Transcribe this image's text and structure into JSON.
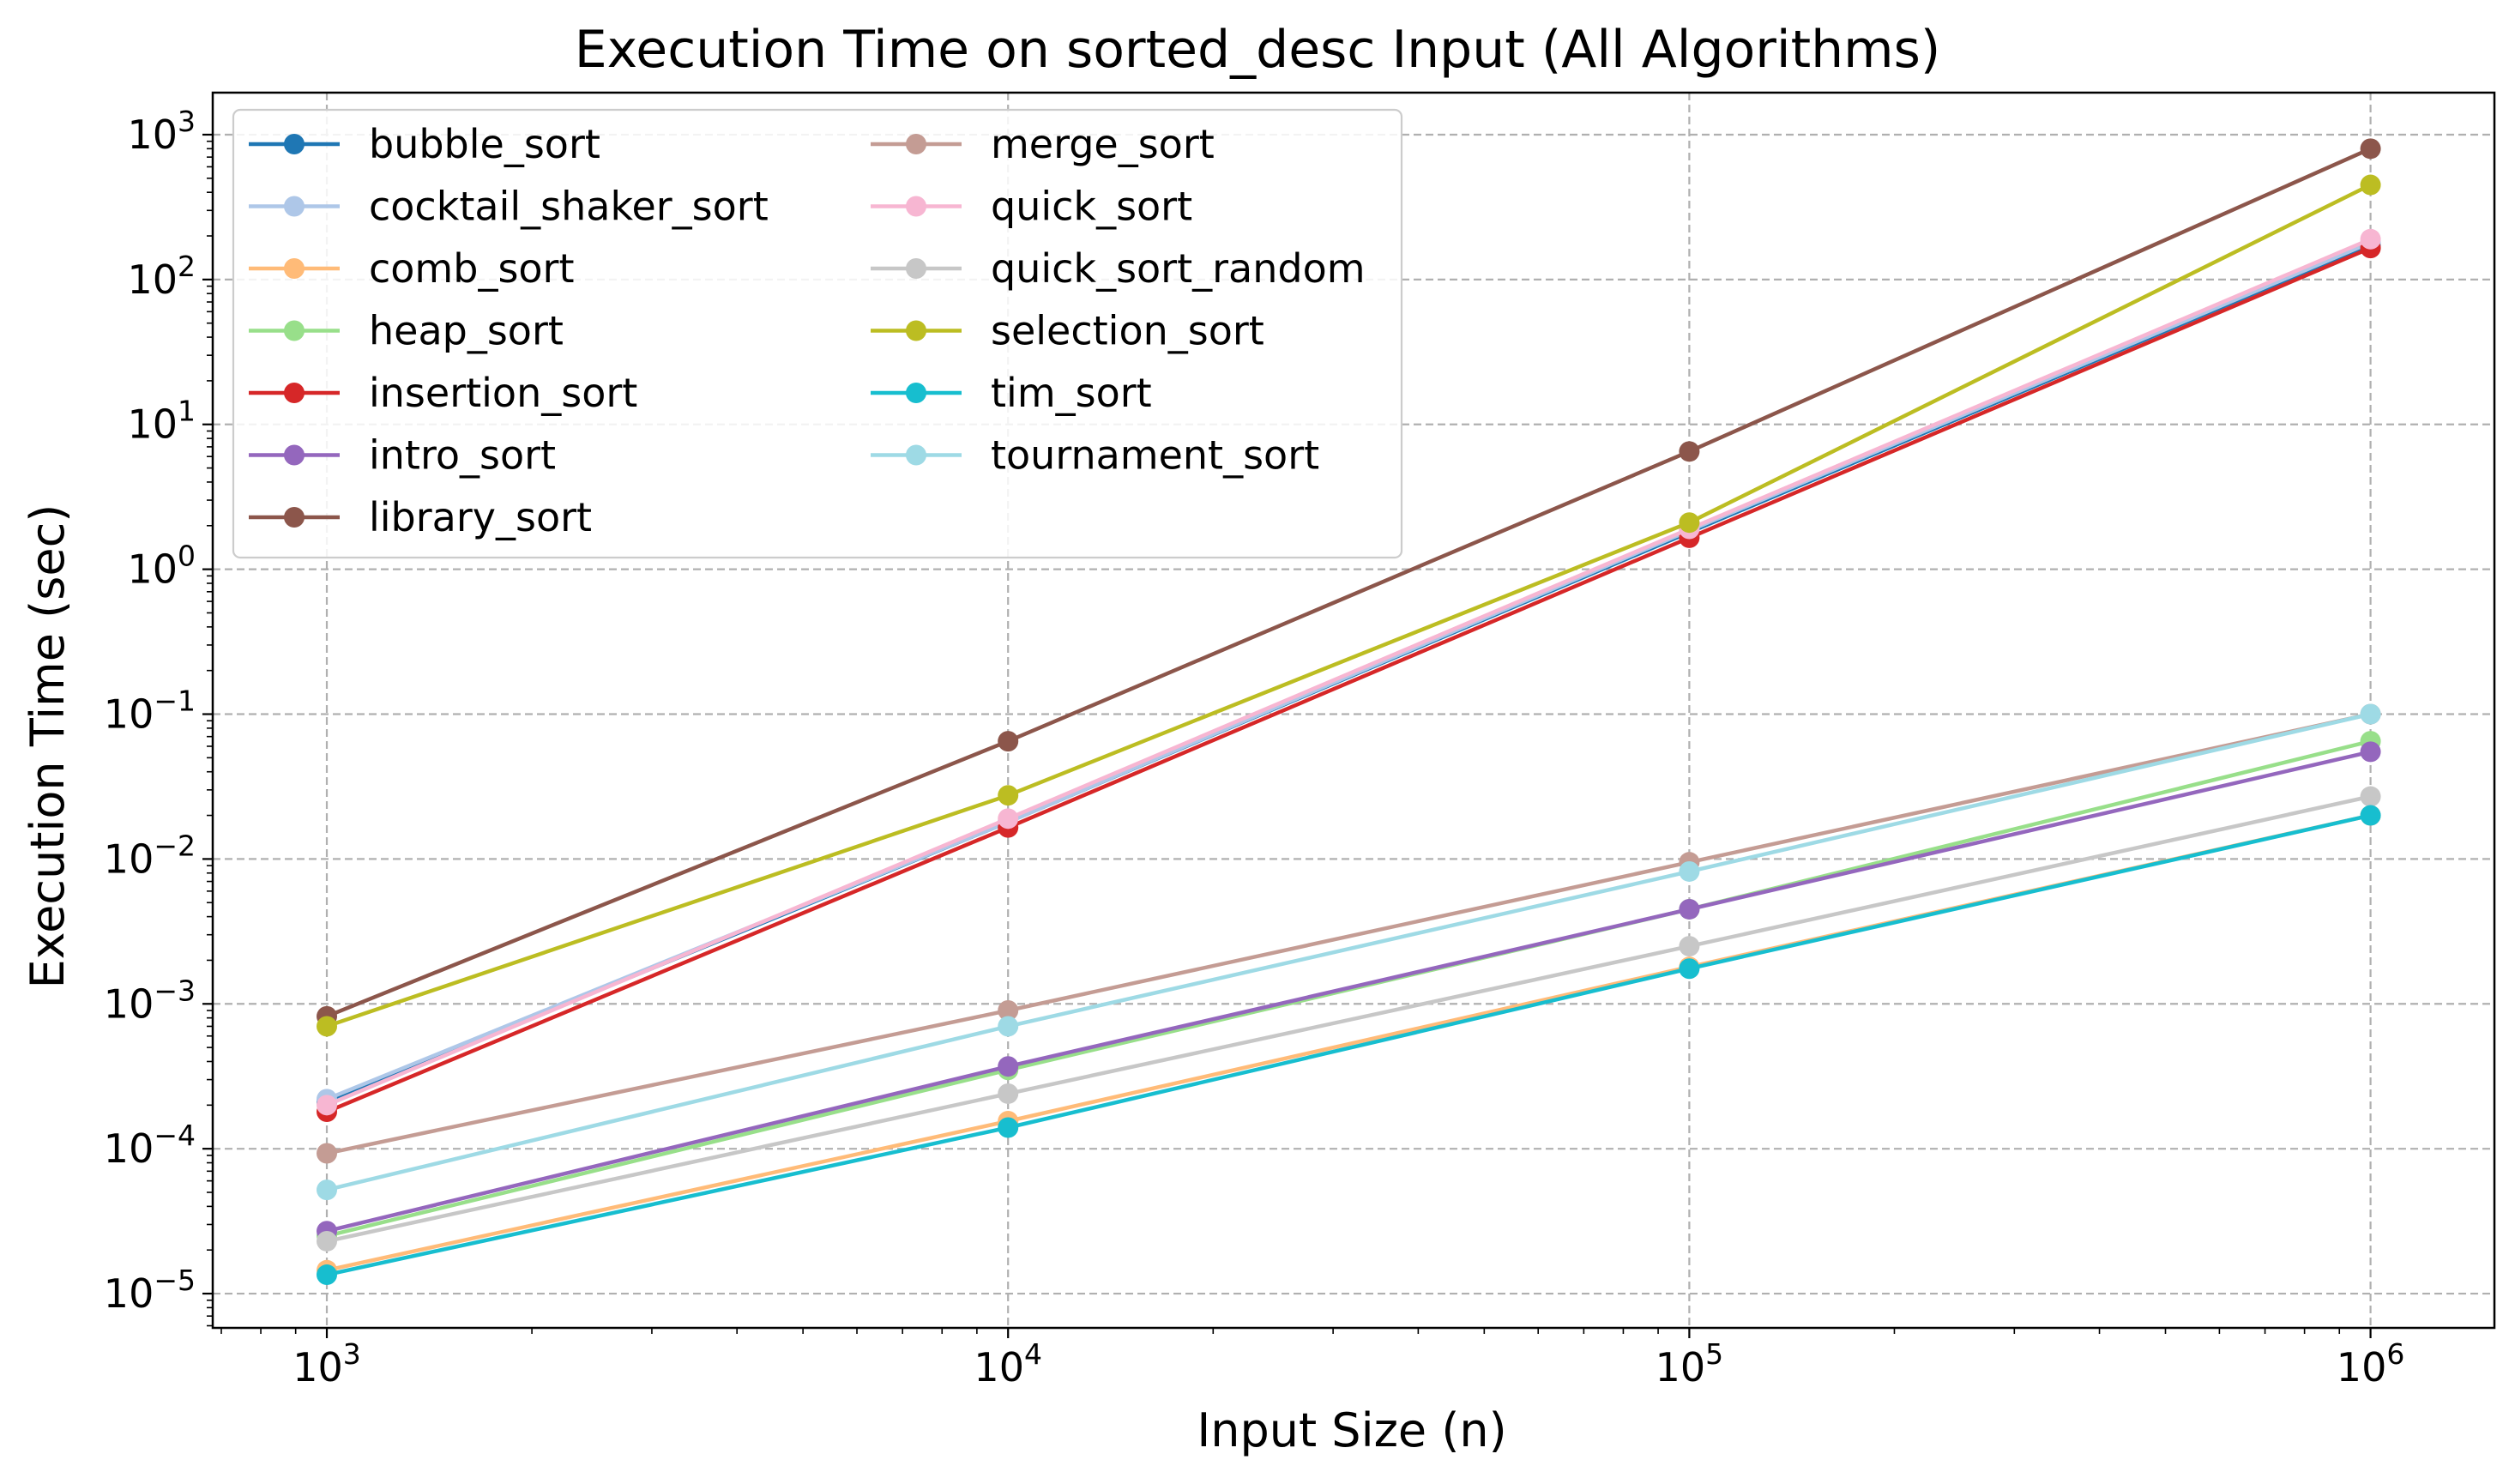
{
  "chart_data": {
    "type": "line",
    "title": "Execution Time on sorted_desc Input (All Algorithms)",
    "xlabel": "Input Size (n)",
    "ylabel": "Execution Time (sec)",
    "x_scale": "log",
    "y_scale": "log",
    "xlim": [
      680,
      1520000
    ],
    "ylim": [
      5.8e-06,
      1950
    ],
    "x_ticks": [
      {
        "value": 1000,
        "base": "10",
        "exp": "3"
      },
      {
        "value": 10000,
        "base": "10",
        "exp": "4"
      },
      {
        "value": 100000,
        "base": "10",
        "exp": "5"
      },
      {
        "value": 1000000,
        "base": "10",
        "exp": "6"
      }
    ],
    "y_ticks": [
      {
        "value": 1e-05,
        "base": "10",
        "exp": "−5"
      },
      {
        "value": 0.0001,
        "base": "10",
        "exp": "−4"
      },
      {
        "value": 0.001,
        "base": "10",
        "exp": "−3"
      },
      {
        "value": 0.01,
        "base": "10",
        "exp": "−2"
      },
      {
        "value": 0.1,
        "base": "10",
        "exp": "−1"
      },
      {
        "value": 1,
        "base": "10",
        "exp": "0"
      },
      {
        "value": 10,
        "base": "10",
        "exp": "1"
      },
      {
        "value": 100,
        "base": "10",
        "exp": "2"
      },
      {
        "value": 1000,
        "base": "10",
        "exp": "3"
      }
    ],
    "grid": true,
    "legend_position": "top-left",
    "x": [
      1000,
      10000,
      100000,
      1000000
    ],
    "series": [
      {
        "name": "bubble_sort",
        "color": "#1f77b4",
        "values": [
          0.00021,
          0.018,
          1.8,
          175
        ]
      },
      {
        "name": "cocktail_shaker_sort",
        "color": "#aec7e8",
        "values": [
          0.00022,
          0.018,
          1.85,
          180
        ]
      },
      {
        "name": "comb_sort",
        "color": "#ffbb78",
        "values": [
          1.45e-05,
          0.000155,
          0.0018,
          0.02
        ]
      },
      {
        "name": "heap_sort",
        "color": "#98df8a",
        "values": [
          2.5e-05,
          0.00035,
          0.0045,
          0.065
        ]
      },
      {
        "name": "insertion_sort",
        "color": "#d62728",
        "values": [
          0.00018,
          0.0165,
          1.65,
          165
        ]
      },
      {
        "name": "intro_sort",
        "color": "#9467bd",
        "values": [
          2.7e-05,
          0.00037,
          0.0045,
          0.055
        ]
      },
      {
        "name": "library_sort",
        "color": "#8c564b",
        "values": [
          0.00082,
          0.065,
          6.5,
          800
        ]
      },
      {
        "name": "merge_sort",
        "color": "#c49c94",
        "values": [
          9.3e-05,
          0.0009,
          0.0095,
          0.1
        ]
      },
      {
        "name": "quick_sort",
        "color": "#f7b6d2",
        "values": [
          0.0002,
          0.019,
          1.9,
          190
        ]
      },
      {
        "name": "quick_sort_random",
        "color": "#c7c7c7",
        "values": [
          2.3e-05,
          0.00024,
          0.0025,
          0.027
        ]
      },
      {
        "name": "selection_sort",
        "color": "#bcbd22",
        "values": [
          0.0007,
          0.0275,
          2.1,
          450
        ]
      },
      {
        "name": "tim_sort",
        "color": "#17becf",
        "values": [
          1.35e-05,
          0.00014,
          0.00175,
          0.02
        ]
      },
      {
        "name": "tournament_sort",
        "color": "#9edae5",
        "values": [
          5.2e-05,
          0.0007,
          0.0082,
          0.1
        ]
      }
    ]
  }
}
